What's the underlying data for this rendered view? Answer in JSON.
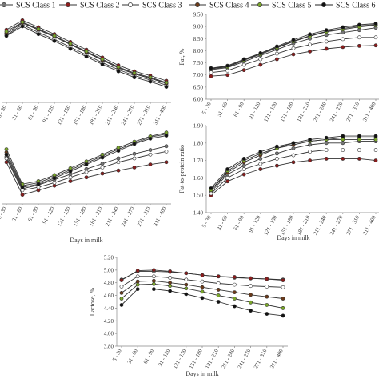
{
  "legend": {
    "entries": [
      {
        "label": "SCS Class 1",
        "color": "#333333",
        "marker": "filled",
        "fill": "#777777"
      },
      {
        "label": "SCS Class 2",
        "color": "#333333",
        "marker": "filled",
        "fill": "#8b1c1c"
      },
      {
        "label": "SCS Class 3",
        "color": "#333333",
        "marker": "open",
        "fill": "#ffffff"
      },
      {
        "label": "SCS Class 4",
        "color": "#333333",
        "marker": "filled",
        "fill": "#6b3a1a"
      },
      {
        "label": "SCS Class 5",
        "color": "#333333",
        "marker": "filled",
        "fill": "#7aa62a"
      },
      {
        "label": "SCS Class 6",
        "color": "#222222",
        "marker": "filled",
        "fill": "#111111"
      }
    ]
  },
  "categories_full": [
    "5 - 30",
    "31 - 60",
    "61 - 90",
    "91 - 120",
    "121 - 150",
    "151 - 180",
    "181 - 210",
    "211 - 240",
    "241 - 270",
    "271 - 310",
    "311 - 400"
  ],
  "chart_data": [
    {
      "id": "milk",
      "type": "line",
      "xlabel": "",
      "ylabel": "",
      "ylim": [
        0,
        100
      ],
      "yticks": [],
      "categories": [
        "5 - 30",
        "31 - 60",
        "61 - 90",
        "91 - 120",
        "121 - 150",
        "151 - 180",
        "181 - 210",
        "211 - 240",
        "241 - 270",
        "271 - 310",
        "311 - 400"
      ],
      "series": [
        {
          "values": [
            80,
            92,
            84,
            76,
            67,
            58,
            49,
            40,
            33,
            28,
            22
          ]
        },
        {
          "values": [
            84,
            95,
            87,
            79,
            70,
            61,
            52,
            43,
            36,
            31,
            25
          ]
        },
        {
          "values": [
            78,
            90,
            81,
            73,
            64,
            55,
            46,
            38,
            31,
            26,
            20
          ]
        },
        {
          "values": [
            80,
            92,
            84,
            76,
            67,
            58,
            49,
            40,
            33,
            28,
            22
          ]
        },
        {
          "values": [
            82,
            93,
            85,
            77,
            68,
            59,
            50,
            41,
            34,
            29,
            23
          ]
        },
        {
          "values": [
            77,
            88,
            79,
            71,
            62,
            53,
            44,
            36,
            29,
            24,
            18
          ]
        }
      ]
    },
    {
      "id": "fat",
      "type": "line",
      "xlabel": "",
      "ylabel": "Fat, %",
      "ylim": [
        6.0,
        9.5
      ],
      "yticks": [
        "6.00",
        "6.50",
        "7.00",
        "7.50",
        "8.00",
        "8.50",
        "9.00",
        "9.50"
      ],
      "categories": [
        "5 - 30",
        "31 - 60",
        "61 - 90",
        "91 - 120",
        "121 - 150",
        "151 - 180",
        "181 - 210",
        "211 - 240",
        "241 - 270",
        "271 - 310",
        "311 - 400"
      ],
      "series": [
        {
          "values": [
            7.22,
            7.3,
            7.55,
            7.8,
            8.05,
            8.3,
            8.5,
            8.65,
            8.75,
            8.85,
            8.95
          ]
        },
        {
          "values": [
            6.95,
            7.0,
            7.2,
            7.42,
            7.65,
            7.85,
            7.97,
            8.08,
            8.15,
            8.2,
            8.22
          ]
        },
        {
          "values": [
            7.1,
            7.18,
            7.42,
            7.65,
            7.88,
            8.1,
            8.25,
            8.38,
            8.48,
            8.55,
            8.55
          ]
        },
        {
          "values": [
            7.27,
            7.35,
            7.62,
            7.88,
            8.15,
            8.4,
            8.62,
            8.8,
            8.92,
            9.02,
            9.08
          ]
        },
        {
          "values": [
            7.25,
            7.33,
            7.6,
            7.85,
            8.12,
            8.38,
            8.6,
            8.78,
            8.88,
            8.98,
            9.05
          ]
        },
        {
          "values": [
            7.28,
            7.38,
            7.65,
            7.9,
            8.18,
            8.45,
            8.68,
            8.85,
            8.97,
            9.07,
            9.12
          ]
        }
      ]
    },
    {
      "id": "protein",
      "type": "line",
      "xlabel": "Days in milk",
      "ylabel": "",
      "ylim": [
        0,
        100
      ],
      "yticks": [],
      "categories": [
        "5 - 30",
        "31 - 60",
        "61 - 90",
        "91 - 120",
        "121 - 150",
        "151 - 180",
        "181 - 210",
        "211 - 240",
        "241 - 270",
        "271 - 310",
        "311 - 400"
      ],
      "series": [
        {
          "values": [
            62,
            20,
            25,
            32,
            39,
            46,
            53,
            60,
            66,
            71,
            76
          ]
        },
        {
          "values": [
            55,
            12,
            18,
            24,
            30,
            35,
            40,
            44,
            48,
            52,
            55
          ]
        },
        {
          "values": [
            60,
            18,
            22,
            28,
            35,
            42,
            48,
            55,
            60,
            65,
            69
          ]
        },
        {
          "values": [
            68,
            24,
            28,
            36,
            45,
            54,
            63,
            72,
            80,
            88,
            92
          ]
        },
        {
          "values": [
            72,
            26,
            30,
            38,
            47,
            56,
            65,
            74,
            82,
            89,
            94
          ]
        },
        {
          "values": [
            65,
            22,
            26,
            34,
            43,
            52,
            61,
            70,
            79,
            86,
            90
          ]
        }
      ]
    },
    {
      "id": "ratio",
      "type": "line",
      "xlabel": "Days in milk",
      "ylabel": "Fat-to-protein ratio",
      "ylim": [
        1.4,
        1.9
      ],
      "yticks": [
        "1.40",
        "1.50",
        "1.60",
        "1.70",
        "1.80",
        "1.90"
      ],
      "categories": [
        "5 - 30",
        "31 - 60",
        "61 - 90",
        "91 - 120",
        "121 - 150",
        "151 - 180",
        "181 - 210",
        "211 - 240",
        "241 - 270",
        "271 - 310",
        "311 - 400"
      ],
      "series": [
        {
          "values": [
            1.52,
            1.62,
            1.67,
            1.71,
            1.74,
            1.77,
            1.79,
            1.8,
            1.8,
            1.81,
            1.81
          ]
        },
        {
          "values": [
            1.5,
            1.58,
            1.62,
            1.65,
            1.67,
            1.69,
            1.7,
            1.71,
            1.71,
            1.71,
            1.7
          ]
        },
        {
          "values": [
            1.51,
            1.6,
            1.65,
            1.68,
            1.71,
            1.73,
            1.75,
            1.76,
            1.76,
            1.76,
            1.76
          ]
        },
        {
          "values": [
            1.53,
            1.63,
            1.69,
            1.73,
            1.77,
            1.79,
            1.81,
            1.82,
            1.83,
            1.83,
            1.83
          ]
        },
        {
          "values": [
            1.53,
            1.64,
            1.7,
            1.74,
            1.77,
            1.8,
            1.81,
            1.82,
            1.82,
            1.82,
            1.82
          ]
        },
        {
          "values": [
            1.54,
            1.65,
            1.71,
            1.75,
            1.78,
            1.8,
            1.82,
            1.83,
            1.84,
            1.84,
            1.84
          ]
        }
      ]
    },
    {
      "id": "lactose",
      "type": "line",
      "xlabel": "Days in milk",
      "ylabel": "Lactose, %",
      "ylim": [
        3.8,
        5.2
      ],
      "yticks": [
        "3.80",
        "4.00",
        "4.20",
        "4.40",
        "4.60",
        "4.80",
        "5.00",
        "5.20"
      ],
      "categories": [
        "5 - 30",
        "31 - 60",
        "61 - 90",
        "91 - 120",
        "121 - 150",
        "151 - 180",
        "181 - 210",
        "211 - 240",
        "241 - 270",
        "271 - 310",
        "311 - 400"
      ],
      "series": [
        {
          "values": [
            4.85,
            4.98,
            4.98,
            4.97,
            4.95,
            4.92,
            4.9,
            4.88,
            4.87,
            4.86,
            4.85
          ]
        },
        {
          "values": [
            4.84,
            4.99,
            5.0,
            4.98,
            4.95,
            4.92,
            4.9,
            4.89,
            4.87,
            4.86,
            4.84
          ]
        },
        {
          "values": [
            4.74,
            4.9,
            4.9,
            4.88,
            4.85,
            4.82,
            4.79,
            4.77,
            4.75,
            4.74,
            4.73
          ]
        },
        {
          "values": [
            4.64,
            4.82,
            4.83,
            4.8,
            4.77,
            4.73,
            4.69,
            4.65,
            4.61,
            4.58,
            4.55
          ]
        },
        {
          "values": [
            4.55,
            4.77,
            4.78,
            4.75,
            4.71,
            4.66,
            4.6,
            4.55,
            4.49,
            4.45,
            4.4
          ]
        },
        {
          "values": [
            4.45,
            4.7,
            4.7,
            4.67,
            4.62,
            4.56,
            4.5,
            4.43,
            4.36,
            4.31,
            4.28
          ]
        }
      ]
    }
  ]
}
